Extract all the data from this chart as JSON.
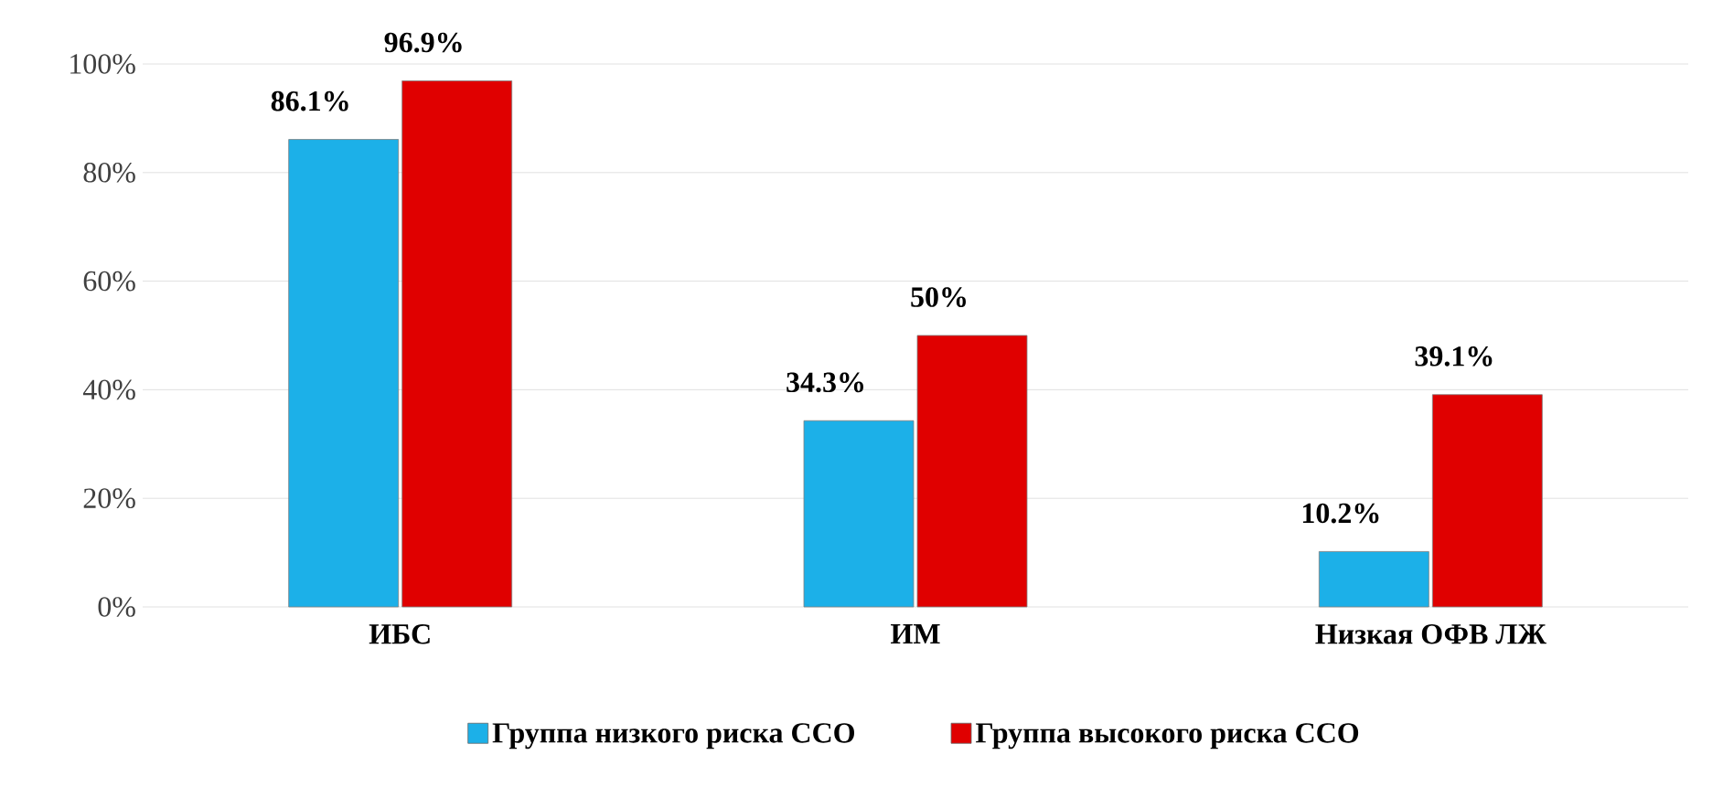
{
  "chart_data": {
    "type": "bar",
    "categories": [
      "ИБС",
      "ИМ",
      "Низкая ОФВ ЛЖ"
    ],
    "series": [
      {
        "name": "Группа низкого риска ССО",
        "color": "#1cb0e8",
        "values": [
          86.1,
          34.3,
          10.2
        ],
        "value_labels": [
          "86.1%",
          "34.3%",
          "10.2%"
        ]
      },
      {
        "name": "Группа высокого риска ССО",
        "color": "#e00000",
        "values": [
          96.9,
          50,
          39.1
        ],
        "value_labels": [
          "96.9%",
          "50%",
          "39.1%"
        ]
      }
    ],
    "ylim": [
      0,
      100
    ],
    "yticks": [
      {
        "value": 0,
        "label": "0%"
      },
      {
        "value": 20,
        "label": "20%"
      },
      {
        "value": 40,
        "label": "40%"
      },
      {
        "value": 60,
        "label": "60%"
      },
      {
        "value": 80,
        "label": "80%"
      },
      {
        "value": 100,
        "label": "100%"
      }
    ],
    "grid": "y",
    "legend": "bottom"
  }
}
